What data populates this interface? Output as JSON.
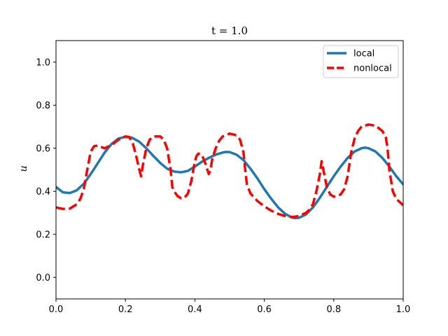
{
  "chart_data": {
    "type": "line",
    "title": "t = 1.0",
    "xlabel": "",
    "ylabel": "u",
    "xlim": [
      0.0,
      1.0
    ],
    "ylim": [
      -0.1,
      1.1
    ],
    "xticks": [
      0.0,
      0.2,
      0.4,
      0.6,
      0.8,
      1.0
    ],
    "xtick_labels": [
      "0.0",
      "0.2",
      "0.4",
      "0.6",
      "0.8",
      "1.0"
    ],
    "yticks": [
      0.0,
      0.2,
      0.4,
      0.6,
      0.8,
      1.0
    ],
    "ytick_labels": [
      "0.0",
      "0.2",
      "0.4",
      "0.6",
      "0.8",
      "1.0"
    ],
    "grid": false,
    "legend_position": "top-right",
    "series": [
      {
        "name": "local",
        "color": "#1f77b4",
        "style": "solid",
        "x": [
          0.0,
          0.02,
          0.04,
          0.06,
          0.08,
          0.1,
          0.12,
          0.14,
          0.16,
          0.18,
          0.2,
          0.21,
          0.22,
          0.24,
          0.26,
          0.28,
          0.3,
          0.32,
          0.34,
          0.36,
          0.38,
          0.4,
          0.42,
          0.44,
          0.46,
          0.48,
          0.49,
          0.5,
          0.52,
          0.54,
          0.56,
          0.58,
          0.6,
          0.62,
          0.64,
          0.66,
          0.68,
          0.69,
          0.7,
          0.72,
          0.74,
          0.76,
          0.78,
          0.8,
          0.82,
          0.84,
          0.86,
          0.88,
          0.89,
          0.9,
          0.92,
          0.94,
          0.96,
          0.98,
          1.0
        ],
        "y": [
          0.42,
          0.395,
          0.392,
          0.405,
          0.435,
          0.48,
          0.53,
          0.58,
          0.62,
          0.645,
          0.653,
          0.652,
          0.648,
          0.63,
          0.6,
          0.565,
          0.532,
          0.505,
          0.492,
          0.488,
          0.495,
          0.515,
          0.537,
          0.555,
          0.57,
          0.58,
          0.583,
          0.582,
          0.57,
          0.545,
          0.505,
          0.46,
          0.41,
          0.365,
          0.325,
          0.295,
          0.278,
          0.275,
          0.277,
          0.292,
          0.325,
          0.37,
          0.42,
          0.47,
          0.515,
          0.555,
          0.585,
          0.6,
          0.603,
          0.6,
          0.585,
          0.555,
          0.515,
          0.47,
          0.432
        ]
      },
      {
        "name": "nonlocal",
        "color": "#ff0000",
        "style": "dashed",
        "x": [
          0.0,
          0.02,
          0.04,
          0.06,
          0.07,
          0.08,
          0.09,
          0.1,
          0.11,
          0.12,
          0.14,
          0.16,
          0.18,
          0.2,
          0.21,
          0.22,
          0.23,
          0.24,
          0.245,
          0.25,
          0.26,
          0.27,
          0.28,
          0.3,
          0.31,
          0.32,
          0.33,
          0.335,
          0.34,
          0.35,
          0.36,
          0.37,
          0.38,
          0.39,
          0.4,
          0.405,
          0.41,
          0.42,
          0.43,
          0.44,
          0.445,
          0.45,
          0.46,
          0.47,
          0.48,
          0.5,
          0.52,
          0.53,
          0.54,
          0.545,
          0.55,
          0.56,
          0.58,
          0.6,
          0.62,
          0.64,
          0.66,
          0.68,
          0.7,
          0.72,
          0.73,
          0.74,
          0.75,
          0.76,
          0.765,
          0.77,
          0.78,
          0.79,
          0.8,
          0.82,
          0.83,
          0.84,
          0.85,
          0.86,
          0.87,
          0.88,
          0.9,
          0.92,
          0.94,
          0.95,
          0.955,
          0.96,
          0.97,
          0.98,
          1.0
        ],
        "y": [
          0.325,
          0.318,
          0.32,
          0.34,
          0.365,
          0.41,
          0.5,
          0.585,
          0.61,
          0.612,
          0.6,
          0.615,
          0.64,
          0.655,
          0.652,
          0.63,
          0.57,
          0.5,
          0.47,
          0.52,
          0.6,
          0.64,
          0.655,
          0.655,
          0.64,
          0.6,
          0.5,
          0.42,
          0.4,
          0.378,
          0.368,
          0.37,
          0.39,
          0.45,
          0.54,
          0.565,
          0.575,
          0.57,
          0.53,
          0.48,
          0.5,
          0.55,
          0.6,
          0.635,
          0.655,
          0.668,
          0.66,
          0.64,
          0.58,
          0.5,
          0.43,
          0.39,
          0.355,
          0.33,
          0.31,
          0.295,
          0.285,
          0.28,
          0.285,
          0.3,
          0.315,
          0.34,
          0.4,
          0.48,
          0.54,
          0.5,
          0.42,
          0.385,
          0.375,
          0.385,
          0.41,
          0.47,
          0.58,
          0.645,
          0.68,
          0.7,
          0.71,
          0.705,
          0.68,
          0.65,
          0.6,
          0.5,
          0.4,
          0.365,
          0.335
        ]
      }
    ]
  }
}
